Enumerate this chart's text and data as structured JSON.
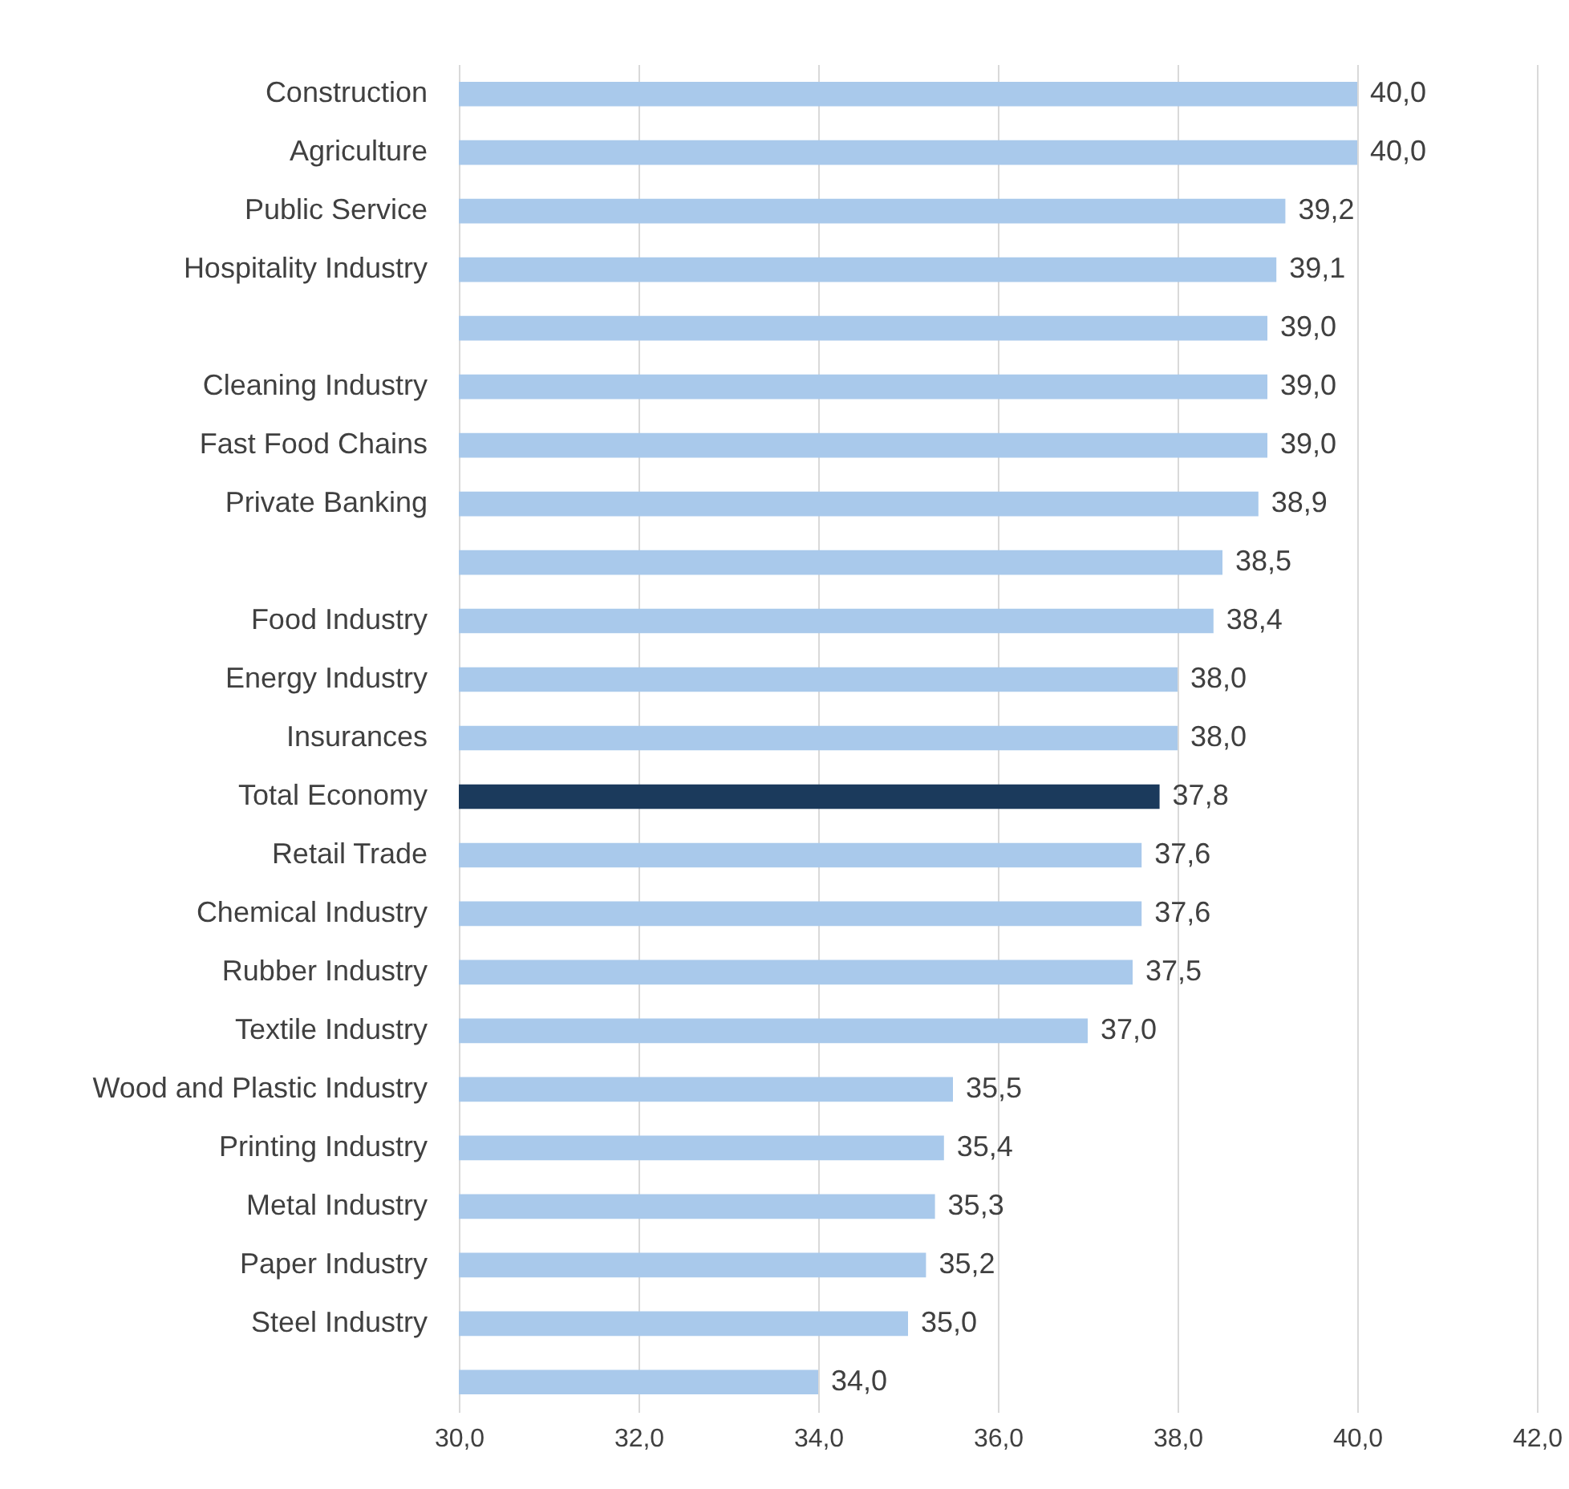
{
  "chart_data": {
    "type": "bar",
    "orientation": "horizontal",
    "categories": [
      "Construction",
      "Agriculture",
      "Public Service",
      "Hospitality Industry",
      null,
      "Cleaning Industry",
      "Fast Food Chains",
      "Private Banking",
      null,
      "Food Industry",
      "Energy Industry",
      "Insurances",
      "Total Economy",
      "Retail Trade",
      "Chemical Industry",
      "Rubber Industry",
      "Textile Industry",
      "Wood and Plastic Industry",
      "Printing Industry",
      "Metal Industry",
      "Paper Industry",
      "Steel Industry",
      null
    ],
    "values": [
      40.0,
      40.0,
      39.2,
      39.1,
      39.0,
      39.0,
      39.0,
      38.9,
      38.5,
      38.4,
      38.0,
      38.0,
      37.8,
      37.6,
      37.6,
      37.5,
      37.0,
      35.5,
      35.4,
      35.3,
      35.2,
      35.0,
      34.0
    ],
    "value_labels": [
      "40,0",
      "40,0",
      "39,2",
      "39,1",
      "39,0",
      "39,0",
      "39,0",
      "38,9",
      "38,5",
      "38,4",
      "38,0",
      "38,0",
      "37,8",
      "37,6",
      "37,6",
      "37,5",
      "37,0",
      "35,5",
      "35,4",
      "35,3",
      "35,2",
      "35,0",
      "34,0"
    ],
    "colors": [
      "#a9c9eb",
      "#a9c9eb",
      "#a9c9eb",
      "#a9c9eb",
      "#a9c9eb",
      "#a9c9eb",
      "#a9c9eb",
      "#a9c9eb",
      "#a9c9eb",
      "#a9c9eb",
      "#a9c9eb",
      "#a9c9eb",
      "#1b3a5c",
      "#a9c9eb",
      "#a9c9eb",
      "#a9c9eb",
      "#a9c9eb",
      "#a9c9eb",
      "#a9c9eb",
      "#a9c9eb",
      "#a9c9eb",
      "#a9c9eb",
      "#a9c9eb"
    ],
    "xlim": [
      30,
      42
    ],
    "xticks": [
      {
        "value": 30,
        "label": "30,0"
      },
      {
        "value": 32,
        "label": "32,0"
      },
      {
        "value": 34,
        "label": "34,0"
      },
      {
        "value": 36,
        "label": "36,0"
      },
      {
        "value": 38,
        "label": "38,0"
      },
      {
        "value": 40,
        "label": "40,0"
      },
      {
        "value": 42,
        "label": "42,0"
      }
    ],
    "grid": "x"
  }
}
